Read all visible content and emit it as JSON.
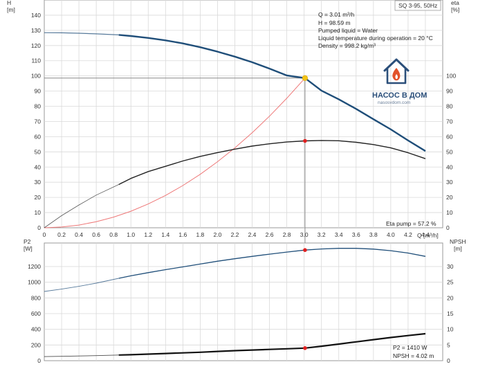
{
  "colors": {
    "head_curve": "#1f4e79",
    "eta_curve": "#222222",
    "system_curve": "#ee7777",
    "guide_line": "#888888",
    "duty_point": "#f2c318",
    "marker": "#e02020",
    "p2_curve": "#1f4e79",
    "npsh_curve": "#111111",
    "grid": "#d9d9d9",
    "logo": "#2b4f7a",
    "flame": "#e2522a"
  },
  "chart_data": [
    {
      "type": "line",
      "title": "SQ 3-95, 50Hz",
      "y_left": {
        "label": "H",
        "unit": "[m]",
        "ylim": [
          0,
          150
        ],
        "ticks": [
          0,
          10,
          20,
          30,
          40,
          50,
          60,
          70,
          80,
          90,
          100,
          110,
          120,
          130,
          140
        ]
      },
      "y_right": {
        "label": "eta",
        "unit": "[%]",
        "ylim": [
          0,
          150
        ],
        "ticks": [
          0,
          10,
          20,
          30,
          40,
          50,
          60,
          70,
          80,
          90,
          100
        ]
      },
      "x": {
        "label": "Q [m³/h]",
        "xlim": [
          0,
          4.6
        ],
        "ticks": [
          "0",
          "0.2",
          "0.4",
          "0.6",
          "0.8",
          "1.0",
          "1.2",
          "1.4",
          "1.6",
          "1.8",
          "2.0",
          "2.2",
          "2.4",
          "2.6",
          "2.8",
          "3.0",
          "3.2",
          "3.4",
          "3.6",
          "3.8",
          "4.0",
          "4.2",
          "4.4"
        ]
      },
      "grid": true,
      "info_lines": [
        "Q = 3.01 m³/h",
        "H = 98.59 m",
        "Pumped liquid = Water",
        "Liquid temperature during operation = 20 °C",
        "Density = 998.2 kg/m³"
      ],
      "series": [
        {
          "key": "head",
          "axis": "left",
          "x": [
            0,
            0.2,
            0.4,
            0.6,
            0.86,
            1.0,
            1.2,
            1.4,
            1.6,
            1.8,
            2.0,
            2.2,
            2.4,
            2.6,
            2.8,
            3.01,
            3.2,
            3.4,
            3.6,
            3.8,
            4.0,
            4.2,
            4.4
          ],
          "y": [
            128.5,
            128.4,
            128.1,
            127.7,
            127.0,
            126.3,
            125.0,
            123.4,
            121.4,
            118.9,
            116.0,
            112.7,
            109.0,
            104.8,
            100.3,
            98.59,
            90.3,
            84.6,
            78.3,
            71.5,
            64.8,
            57.5,
            50.5
          ]
        },
        {
          "key": "eta",
          "axis": "right",
          "x": [
            0,
            0.2,
            0.4,
            0.6,
            0.86,
            1.0,
            1.2,
            1.4,
            1.6,
            1.8,
            2.0,
            2.2,
            2.4,
            2.6,
            2.8,
            3.01,
            3.2,
            3.4,
            3.6,
            3.8,
            4.0,
            4.2,
            4.4
          ],
          "y": [
            0,
            8,
            15,
            21.5,
            28.5,
            32.5,
            37,
            40.5,
            44,
            47,
            49.5,
            51.8,
            53.8,
            55.3,
            56.5,
            57.2,
            57.5,
            57.3,
            56.3,
            54.8,
            52.6,
            49.4,
            45.5
          ]
        },
        {
          "key": "system",
          "axis": "left",
          "x": [
            0,
            0.2,
            0.4,
            0.6,
            0.8,
            1.0,
            1.2,
            1.4,
            1.6,
            1.8,
            2.0,
            2.2,
            2.4,
            2.6,
            2.8,
            3.01
          ],
          "y": [
            0,
            0.5,
            1.8,
            4.0,
            7.0,
            10.9,
            15.7,
            21.3,
            27.8,
            35.2,
            43.5,
            52.6,
            62.6,
            73.5,
            85.3,
            98.59
          ]
        }
      ],
      "duty_point": {
        "x": 3.01,
        "y": 98.59
      },
      "eta_point": {
        "x": 3.01,
        "y": 57.2
      },
      "annotation": "Eta pump = 57.2 %"
    },
    {
      "type": "line",
      "y_left": {
        "label": "P2",
        "unit": "[W]",
        "ylim": [
          0,
          1500
        ],
        "ticks": [
          0,
          200,
          400,
          600,
          800,
          1000,
          1200
        ]
      },
      "y_right": {
        "label": "NPSH",
        "unit": "[m]",
        "ylim": [
          0,
          37.5
        ],
        "ticks": [
          0,
          5,
          10,
          15,
          20,
          25,
          30
        ]
      },
      "grid": true,
      "series": [
        {
          "key": "p2",
          "axis": "left",
          "x": [
            0,
            0.2,
            0.4,
            0.6,
            0.86,
            1.0,
            1.2,
            1.4,
            1.6,
            1.8,
            2.0,
            2.2,
            2.4,
            2.6,
            2.8,
            3.01,
            3.2,
            3.4,
            3.6,
            3.8,
            4.0,
            4.2,
            4.4
          ],
          "y": [
            882,
            912,
            948,
            988,
            1050,
            1082,
            1122,
            1160,
            1196,
            1232,
            1268,
            1300,
            1330,
            1358,
            1384,
            1410,
            1424,
            1432,
            1432,
            1422,
            1402,
            1372,
            1330
          ]
        },
        {
          "key": "npsh",
          "axis": "right",
          "x": [
            0,
            0.2,
            0.4,
            0.6,
            0.86,
            1.0,
            1.2,
            1.4,
            1.6,
            1.8,
            2.0,
            2.2,
            2.4,
            2.6,
            2.8,
            3.01,
            3.2,
            3.4,
            3.6,
            3.8,
            4.0,
            4.2,
            4.4
          ],
          "y": [
            1.3,
            1.4,
            1.5,
            1.6,
            1.8,
            1.9,
            2.1,
            2.3,
            2.5,
            2.7,
            2.95,
            3.2,
            3.4,
            3.6,
            3.8,
            4.02,
            4.6,
            5.3,
            6.0,
            6.7,
            7.4,
            8.0,
            8.6
          ]
        }
      ],
      "p2_point": {
        "x": 3.01,
        "y": 1410
      },
      "npsh_point": {
        "x": 3.01,
        "y": 4.02
      },
      "annotations": [
        "P2 = 1410 W",
        "NPSH = 4.02 m"
      ]
    }
  ],
  "logo": {
    "brand": "НАСОС В ДОМ",
    "site": "nasosvdom.com"
  }
}
